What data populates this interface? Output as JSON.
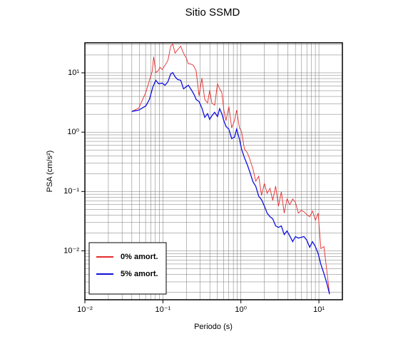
{
  "chart_data": {
    "type": "line",
    "title": "Sitio SSMD",
    "xlabel": "Periodo (s)",
    "ylabel": "PSA (cm/s²)",
    "xscale": "log",
    "yscale": "log",
    "grid": true,
    "minor_grid": true,
    "legend": "lower left",
    "xlim": [
      0.01,
      20
    ],
    "ylim": [
      0.0015,
      32
    ],
    "xticks": [
      {
        "value": 0.01,
        "label": "10⁻²"
      },
      {
        "value": 0.1,
        "label": "10⁻¹"
      },
      {
        "value": 1,
        "label": "10⁰"
      },
      {
        "value": 10,
        "label": "10¹"
      }
    ],
    "yticks": [
      {
        "value": 0.01,
        "label": "10⁻²"
      },
      {
        "value": 0.1,
        "label": "10⁻¹"
      },
      {
        "value": 1,
        "label": "10⁰"
      },
      {
        "value": 10,
        "label": "10¹"
      }
    ],
    "series": [
      {
        "name": "0% amort.",
        "color": "#e52b2b",
        "x": [
          0.0398,
          0.0491,
          0.0605,
          0.0672,
          0.0731,
          0.0762,
          0.0811,
          0.0864,
          0.092,
          0.098,
          0.1065,
          0.116,
          0.126,
          0.134,
          0.143,
          0.155,
          0.169,
          0.184,
          0.2,
          0.212,
          0.226,
          0.246,
          0.267,
          0.291,
          0.316,
          0.344,
          0.374,
          0.398,
          0.424,
          0.461,
          0.501,
          0.534,
          0.569,
          0.605,
          0.644,
          0.701,
          0.762,
          0.828,
          0.882,
          0.959,
          1.02,
          1.11,
          1.21,
          1.31,
          1.43,
          1.55,
          1.69,
          1.84,
          2.0,
          2.17,
          2.36,
          2.56,
          2.79,
          3.03,
          3.3,
          3.59,
          3.9,
          4.24,
          4.61,
          5.01,
          5.45,
          5.93,
          6.44,
          7.0,
          7.62,
          8.28,
          9.01,
          9.79,
          10.6,
          11.6,
          12.6,
          13.7
        ],
        "values": [
          2.23,
          2.55,
          4.69,
          7.48,
          10.7,
          18.6,
          10.1,
          10.7,
          12.3,
          11.3,
          13.4,
          16.2,
          28.1,
          30.5,
          21.4,
          24.5,
          28.1,
          21.4,
          17.6,
          14.1,
          14.1,
          13.4,
          10.7,
          4.08,
          8.13,
          3.56,
          3.1,
          5.09,
          3.1,
          2.85,
          6.52,
          5.38,
          4.69,
          2.35,
          1.56,
          2.7,
          1.18,
          1.56,
          2.35,
          1.18,
          1.03,
          0.516,
          0.45,
          0.341,
          0.238,
          0.149,
          0.181,
          0.0859,
          0.137,
          0.0933,
          0.113,
          0.0708,
          0.123,
          0.0568,
          0.0986,
          0.0431,
          0.0749,
          0.06,
          0.0749,
          0.0652,
          0.0431,
          0.0482,
          0.0456,
          0.0408,
          0.0376,
          0.0469,
          0.0327,
          0.0431,
          0.0109,
          0.0118,
          0.00475,
          0.00186
        ]
      },
      {
        "name": "5% amort.",
        "color": "#1010e0",
        "x": [
          0.0398,
          0.0491,
          0.0605,
          0.0672,
          0.0746,
          0.0811,
          0.0882,
          0.098,
          0.1065,
          0.116,
          0.126,
          0.134,
          0.143,
          0.155,
          0.169,
          0.184,
          0.2,
          0.212,
          0.236,
          0.251,
          0.267,
          0.291,
          0.316,
          0.344,
          0.374,
          0.398,
          0.424,
          0.461,
          0.501,
          0.534,
          0.569,
          0.605,
          0.644,
          0.701,
          0.762,
          0.828,
          0.882,
          0.959,
          1.02,
          1.11,
          1.21,
          1.31,
          1.43,
          1.55,
          1.69,
          1.84,
          2.0,
          2.17,
          2.36,
          2.56,
          2.79,
          3.03,
          3.3,
          3.59,
          3.9,
          4.24,
          4.61,
          5.01,
          5.45,
          5.93,
          6.44,
          7.0,
          7.62,
          8.28,
          9.01,
          9.79,
          10.6,
          11.6,
          12.6,
          13.7
        ],
        "values": [
          2.23,
          2.35,
          2.77,
          3.56,
          5.84,
          7.48,
          6.52,
          6.7,
          6.17,
          7.08,
          9.59,
          10.1,
          8.59,
          7.69,
          7.48,
          5.38,
          5.84,
          6.17,
          4.95,
          4.31,
          3.56,
          3.27,
          2.55,
          1.78,
          2.05,
          1.64,
          1.88,
          2.16,
          1.83,
          2.48,
          2.05,
          1.56,
          1.25,
          1.12,
          0.78,
          0.824,
          1.12,
          0.759,
          0.516,
          0.371,
          0.281,
          0.208,
          0.145,
          0.123,
          0.0836,
          0.0728,
          0.0568,
          0.0431,
          0.0376,
          0.0346,
          0.0263,
          0.0248,
          0.0263,
          0.0188,
          0.0216,
          0.0178,
          0.0143,
          0.0174,
          0.0164,
          0.0169,
          0.0174,
          0.0151,
          0.0115,
          0.0143,
          0.0118,
          0.00895,
          0.00592,
          0.00414,
          0.00289,
          0.00186
        ]
      }
    ]
  }
}
